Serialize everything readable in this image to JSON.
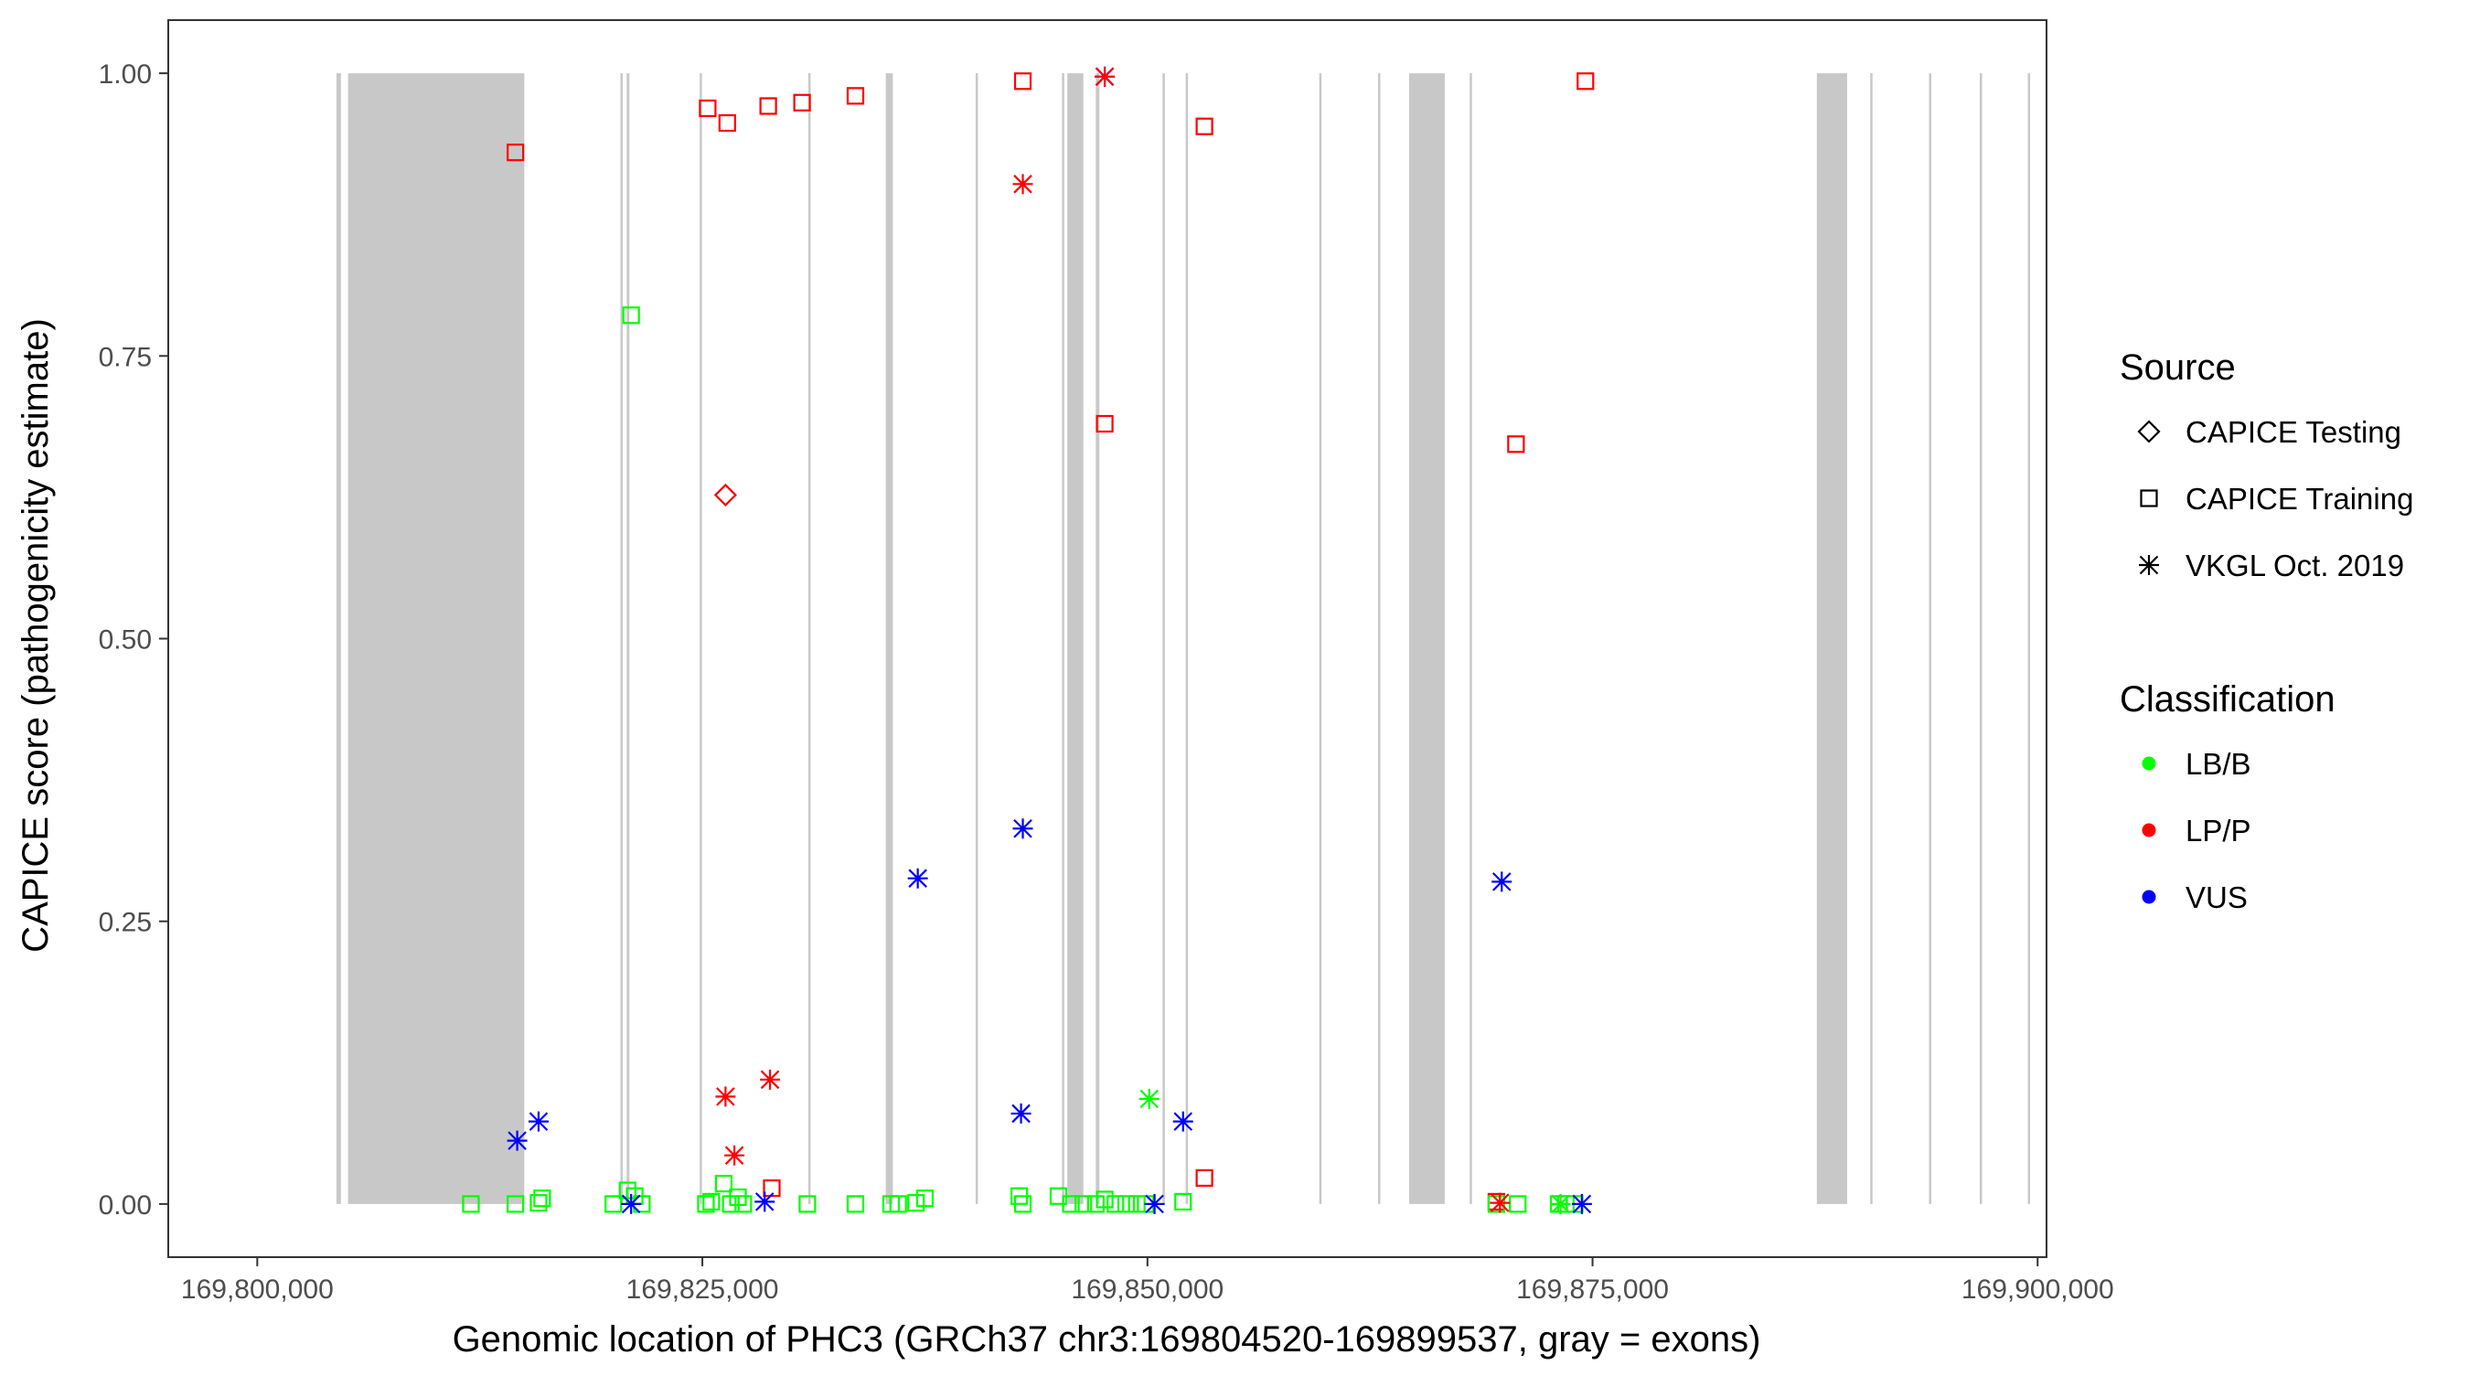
{
  "chart_data": {
    "type": "scatter",
    "title": "",
    "xlabel": "Genomic location of PHC3 (GRCh37 chr3:169804520-169899537, gray = exons)",
    "ylabel": "CAPICE score (pathogenicity estimate)",
    "xlim": [
      169795000,
      169900500
    ],
    "ylim": [
      -0.047,
      1.047
    ],
    "x_ticks": [
      169800000,
      169825000,
      169850000,
      169875000,
      169900000
    ],
    "x_tick_labels": [
      "169,800,000",
      "169,825,000",
      "169,850,000",
      "169,875,000",
      "169,900,000"
    ],
    "y_ticks": [
      0,
      0.25,
      0.5,
      0.75,
      1.0
    ],
    "y_tick_labels": [
      "0.00",
      "0.25",
      "0.50",
      "0.75",
      "1.00"
    ],
    "grid": false,
    "legend_placement": "right",
    "exons": [
      [
        169804450,
        169804700
      ],
      [
        169805100,
        169815000
      ],
      [
        169820400,
        169820500
      ],
      [
        169820750,
        169820900
      ],
      [
        169824850,
        169824950
      ],
      [
        169830950,
        169831050
      ],
      [
        169835300,
        169835700
      ],
      [
        169840350,
        169840450
      ],
      [
        169845200,
        169845300
      ],
      [
        169845500,
        169846400
      ],
      [
        169847100,
        169847300
      ],
      [
        169850850,
        169850950
      ],
      [
        169852150,
        169852250
      ],
      [
        169859650,
        169859750
      ],
      [
        169862950,
        169863050
      ],
      [
        169864700,
        169866700
      ],
      [
        169868100,
        169868200
      ],
      [
        169887600,
        169889300
      ],
      [
        169890600,
        169890700
      ],
      [
        169893900,
        169894000
      ],
      [
        169896750,
        169896850
      ],
      [
        169899450,
        169899550
      ]
    ],
    "legend": {
      "source_title": "Source",
      "source_items": [
        {
          "label": "CAPICE Testing",
          "shape": "diamond"
        },
        {
          "label": "CAPICE Training",
          "shape": "square"
        },
        {
          "label": "VKGL Oct. 2019",
          "shape": "asterisk"
        }
      ],
      "class_title": "Classification",
      "class_items": [
        {
          "label": "LB/B",
          "color": "#00ff00"
        },
        {
          "label": "LP/P",
          "color": "#ff0000"
        },
        {
          "label": "VUS",
          "color": "#0000ff"
        }
      ]
    },
    "series": [
      {
        "name": "CAPICE Training",
        "shape": "square",
        "points": [
          {
            "x": 169814500,
            "y": 0.93,
            "c": "LP/P"
          },
          {
            "x": 169825300,
            "y": 0.969,
            "c": "LP/P"
          },
          {
            "x": 169826400,
            "y": 0.956,
            "c": "LP/P"
          },
          {
            "x": 169828700,
            "y": 0.971,
            "c": "LP/P"
          },
          {
            "x": 169830600,
            "y": 0.974,
            "c": "LP/P"
          },
          {
            "x": 169833600,
            "y": 0.98,
            "c": "LP/P"
          },
          {
            "x": 169843000,
            "y": 0.993,
            "c": "LP/P"
          },
          {
            "x": 169853200,
            "y": 0.953,
            "c": "LP/P"
          },
          {
            "x": 169874600,
            "y": 0.993,
            "c": "LP/P"
          },
          {
            "x": 169847600,
            "y": 0.69,
            "c": "LP/P"
          },
          {
            "x": 169870700,
            "y": 0.672,
            "c": "LP/P"
          },
          {
            "x": 169853200,
            "y": 0.023,
            "c": "LP/P"
          },
          {
            "x": 169828900,
            "y": 0.014,
            "c": "LP/P"
          },
          {
            "x": 169869600,
            "y": 0.002,
            "c": "LP/P"
          },
          {
            "x": 169821000,
            "y": 0.786,
            "c": "LB/B"
          },
          {
            "x": 169812000,
            "y": 0.0,
            "c": "LB/B"
          },
          {
            "x": 169814500,
            "y": 0.0,
            "c": "LB/B"
          },
          {
            "x": 169815800,
            "y": 0.001,
            "c": "LB/B"
          },
          {
            "x": 169816000,
            "y": 0.005,
            "c": "LB/B"
          },
          {
            "x": 169820000,
            "y": 0.0,
            "c": "LB/B"
          },
          {
            "x": 169820800,
            "y": 0.012,
            "c": "LB/B"
          },
          {
            "x": 169821200,
            "y": 0.007,
            "c": "LB/B"
          },
          {
            "x": 169821600,
            "y": 0.0,
            "c": "LB/B"
          },
          {
            "x": 169825200,
            "y": 0.0,
            "c": "LB/B"
          },
          {
            "x": 169825500,
            "y": 0.002,
            "c": "LB/B"
          },
          {
            "x": 169826200,
            "y": 0.018,
            "c": "LB/B"
          },
          {
            "x": 169826600,
            "y": 0.0,
            "c": "LB/B"
          },
          {
            "x": 169827000,
            "y": 0.006,
            "c": "LB/B"
          },
          {
            "x": 169827300,
            "y": 0.0,
            "c": "LB/B"
          },
          {
            "x": 169830900,
            "y": 0.0,
            "c": "LB/B"
          },
          {
            "x": 169833600,
            "y": 0.0,
            "c": "LB/B"
          },
          {
            "x": 169835600,
            "y": 0.0,
            "c": "LB/B"
          },
          {
            "x": 169836000,
            "y": 0.0,
            "c": "LB/B"
          },
          {
            "x": 169837000,
            "y": 0.001,
            "c": "LB/B"
          },
          {
            "x": 169837500,
            "y": 0.005,
            "c": "LB/B"
          },
          {
            "x": 169842800,
            "y": 0.007,
            "c": "LB/B"
          },
          {
            "x": 169843000,
            "y": 0.0,
            "c": "LB/B"
          },
          {
            "x": 169845000,
            "y": 0.007,
            "c": "LB/B"
          },
          {
            "x": 169845700,
            "y": 0.0,
            "c": "LB/B"
          },
          {
            "x": 169846400,
            "y": 0.0,
            "c": "LB/B"
          },
          {
            "x": 169847100,
            "y": 0.0,
            "c": "LB/B"
          },
          {
            "x": 169847600,
            "y": 0.004,
            "c": "LB/B"
          },
          {
            "x": 169848200,
            "y": 0.0,
            "c": "LB/B"
          },
          {
            "x": 169848800,
            "y": 0.0,
            "c": "LB/B"
          },
          {
            "x": 169849400,
            "y": 0.0,
            "c": "LB/B"
          },
          {
            "x": 169849900,
            "y": 0.0,
            "c": "LB/B"
          },
          {
            "x": 169852000,
            "y": 0.002,
            "c": "LB/B"
          },
          {
            "x": 169869600,
            "y": 0.0,
            "c": "LB/B"
          },
          {
            "x": 169870800,
            "y": 0.0,
            "c": "LB/B"
          },
          {
            "x": 169873100,
            "y": 0.0,
            "c": "LB/B"
          },
          {
            "x": 169873500,
            "y": 0.0,
            "c": "LB/B"
          },
          {
            "x": 169874000,
            "y": 0.0,
            "c": "LB/B"
          }
        ]
      },
      {
        "name": "CAPICE Testing",
        "shape": "diamond",
        "points": [
          {
            "x": 169826300,
            "y": 0.627,
            "c": "LP/P"
          }
        ]
      },
      {
        "name": "VKGL Oct. 2019",
        "shape": "asterisk",
        "points": [
          {
            "x": 169847600,
            "y": 0.997,
            "c": "VUS"
          },
          {
            "x": 169847600,
            "y": 0.997,
            "c": "LP/P"
          },
          {
            "x": 169843000,
            "y": 0.902,
            "c": "LP/P"
          },
          {
            "x": 169843000,
            "y": 0.332,
            "c": "VUS"
          },
          {
            "x": 169837100,
            "y": 0.288,
            "c": "VUS"
          },
          {
            "x": 169869900,
            "y": 0.285,
            "c": "VUS"
          },
          {
            "x": 169826300,
            "y": 0.095,
            "c": "LP/P"
          },
          {
            "x": 169828800,
            "y": 0.11,
            "c": "LP/P"
          },
          {
            "x": 169826800,
            "y": 0.043,
            "c": "LP/P"
          },
          {
            "x": 169850100,
            "y": 0.093,
            "c": "LB/B"
          },
          {
            "x": 169842900,
            "y": 0.08,
            "c": "VUS"
          },
          {
            "x": 169852000,
            "y": 0.073,
            "c": "VUS"
          },
          {
            "x": 169814600,
            "y": 0.056,
            "c": "VUS"
          },
          {
            "x": 169815800,
            "y": 0.073,
            "c": "VUS"
          },
          {
            "x": 169821000,
            "y": 0.0,
            "c": "VUS"
          },
          {
            "x": 169828500,
            "y": 0.002,
            "c": "VUS"
          },
          {
            "x": 169850400,
            "y": 0.0,
            "c": "VUS"
          },
          {
            "x": 169869800,
            "y": 0.001,
            "c": "LP/P"
          },
          {
            "x": 169873200,
            "y": 0.0,
            "c": "LB/B"
          },
          {
            "x": 169874400,
            "y": 0.0,
            "c": "VUS"
          }
        ]
      }
    ]
  }
}
